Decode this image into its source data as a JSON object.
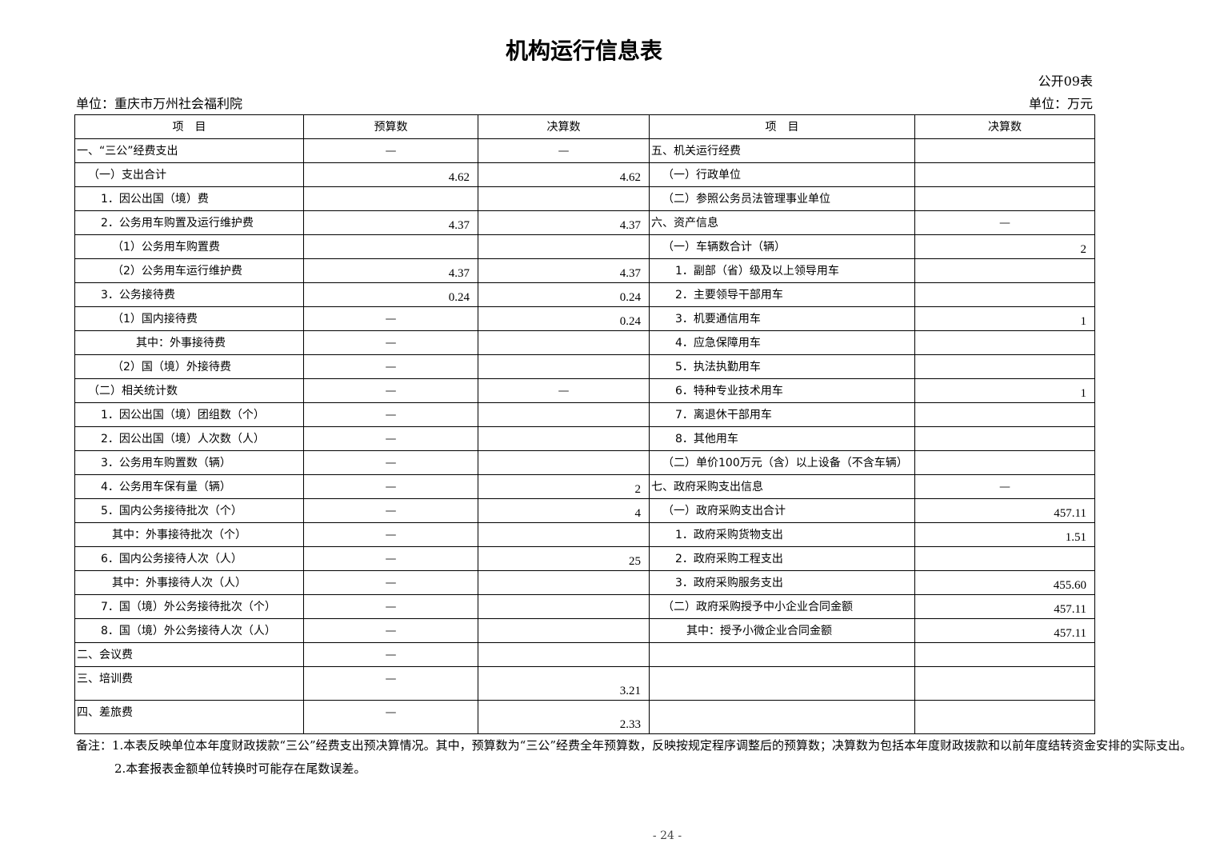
{
  "title": "机构运行信息表",
  "form_no": "公开09表",
  "unit_org": "单位：重庆市万州社会福利院",
  "unit_money": "单位：万元",
  "headers": {
    "left_item": "项　目",
    "budget": "预算数",
    "final": "决算数",
    "right_item": "项　目",
    "right_final": "决算数"
  },
  "rows": [
    {
      "l": "一、“三公”经费支出",
      "li": 0,
      "b": "—",
      "f": "—",
      "r": "五、机关运行经费",
      "ri": 0,
      "rf": ""
    },
    {
      "l": "（一）支出合计",
      "li": 1,
      "b": "4.62",
      "f": "4.62",
      "r": "（一）行政单位",
      "ri": 1,
      "rf": ""
    },
    {
      "l": "1．因公出国（境）费",
      "li": 2,
      "b": "",
      "f": "",
      "r": "（二）参照公务员法管理事业单位",
      "ri": 1,
      "rf": ""
    },
    {
      "l": "2．公务用车购置及运行维护费",
      "li": 2,
      "b": "4.37",
      "f": "4.37",
      "r": "六、资产信息",
      "ri": 0,
      "rf": "—"
    },
    {
      "l": "（1）公务用车购置费",
      "li": 3,
      "b": "",
      "f": "",
      "r": "（一）车辆数合计（辆）",
      "ri": 1,
      "rf": "2"
    },
    {
      "l": "（2）公务用车运行维护费",
      "li": 3,
      "b": "4.37",
      "f": "4.37",
      "r": "1．副部（省）级及以上领导用车",
      "ri": 2,
      "rf": ""
    },
    {
      "l": "3．公务接待费",
      "li": 2,
      "b": "0.24",
      "f": "0.24",
      "r": "2．主要领导干部用车",
      "ri": 2,
      "rf": ""
    },
    {
      "l": "（1）国内接待费",
      "li": 3,
      "b": "—",
      "f": "0.24",
      "r": "3．机要通信用车",
      "ri": 2,
      "rf": "1"
    },
    {
      "l": "其中：外事接待费",
      "li": 4,
      "b": "—",
      "f": "",
      "r": "4．应急保障用车",
      "ri": 2,
      "rf": ""
    },
    {
      "l": "（2）国（境）外接待费",
      "li": 3,
      "b": "—",
      "f": "",
      "r": "5．执法执勤用车",
      "ri": 2,
      "rf": ""
    },
    {
      "l": "（二）相关统计数",
      "li": 1,
      "b": "—",
      "f": "—",
      "r": "6．特种专业技术用车",
      "ri": 2,
      "rf": "1"
    },
    {
      "l": "1．因公出国（境）团组数（个）",
      "li": 2,
      "b": "—",
      "f": "",
      "r": "7．离退休干部用车",
      "ri": 2,
      "rf": ""
    },
    {
      "l": "2．因公出国（境）人次数（人）",
      "li": 2,
      "b": "—",
      "f": "",
      "r": "8．其他用车",
      "ri": 2,
      "rf": ""
    },
    {
      "l": "3．公务用车购置数（辆）",
      "li": 2,
      "b": "—",
      "f": "",
      "r": "（二）单价100万元（含）以上设备（不含车辆）",
      "ri": 1,
      "rf": ""
    },
    {
      "l": "4．公务用车保有量（辆）",
      "li": 2,
      "b": "—",
      "f": "2",
      "r": "七、政府采购支出信息",
      "ri": 0,
      "rf": "—"
    },
    {
      "l": "5．国内公务接待批次（个）",
      "li": 2,
      "b": "—",
      "f": "4",
      "r": "（一）政府采购支出合计",
      "ri": 1,
      "rf": "457.11"
    },
    {
      "l": "其中：外事接待批次（个）",
      "li": 3,
      "b": "—",
      "f": "",
      "r": "1．政府采购货物支出",
      "ri": 2,
      "rf": "1.51"
    },
    {
      "l": "6．国内公务接待人次（人）",
      "li": 2,
      "b": "—",
      "f": "25",
      "r": "2．政府采购工程支出",
      "ri": 2,
      "rf": ""
    },
    {
      "l": "其中：外事接待人次（人）",
      "li": 3,
      "b": "—",
      "f": "",
      "r": "3．政府采购服务支出",
      "ri": 2,
      "rf": "455.60"
    },
    {
      "l": "7．国（境）外公务接待批次（个）",
      "li": 2,
      "b": "—",
      "f": "",
      "r": "（二）政府采购授予中小企业合同金额",
      "ri": 1,
      "rf": "457.11"
    },
    {
      "l": "8．国（境）外公务接待人次（人）",
      "li": 2,
      "b": "—",
      "f": "",
      "r": "其中：授予小微企业合同金额",
      "ri": 3,
      "rf": "457.11"
    },
    {
      "l": "二、会议费",
      "li": 0,
      "b": "—",
      "f": "",
      "r": "",
      "ri": 0,
      "rf": ""
    },
    {
      "l": "三、培训费",
      "li": 0,
      "b": "—",
      "f": "3.21",
      "r": "",
      "ri": 0,
      "rf": "",
      "tall": true
    },
    {
      "l": "四、差旅费",
      "li": 0,
      "b": "—",
      "f": "2.33",
      "r": "",
      "ri": 0,
      "rf": "",
      "tall": true
    }
  ],
  "notes": {
    "n1": "备注：1.本表反映单位本年度财政拨款“三公”经费支出预决算情况。其中，预算数为“三公”经费全年预算数，反映按规定程序调整后的预算数；决算数为包括本年度财政拨款和以前年度结转资金安排的实际支出。",
    "n2": "2.本套报表金额单位转换时可能存在尾数误差。"
  },
  "page_number": "- 24 -"
}
